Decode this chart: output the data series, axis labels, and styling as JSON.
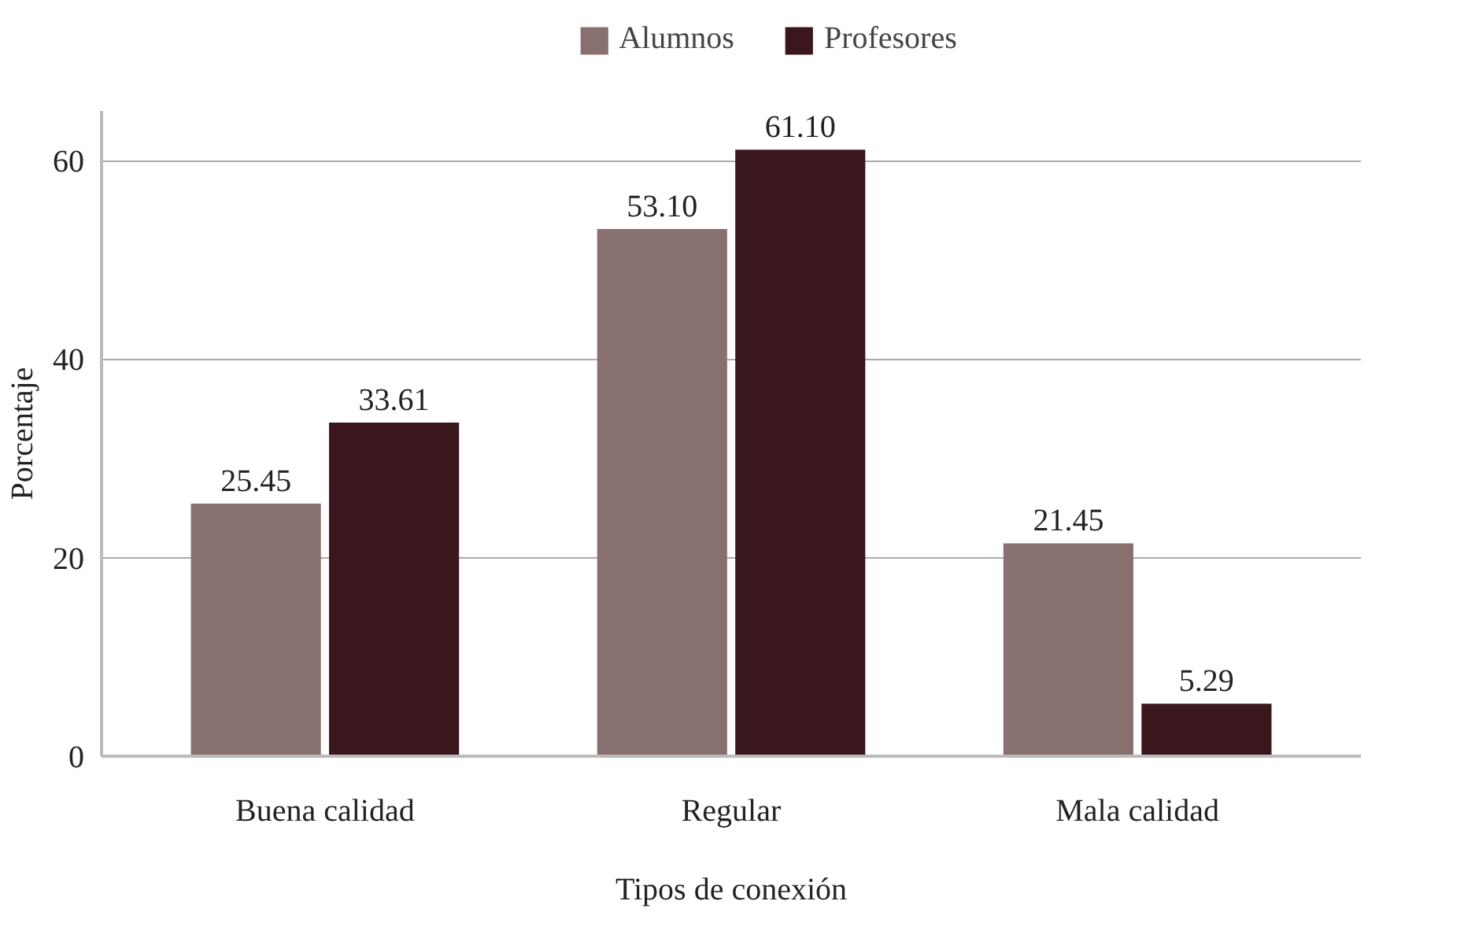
{
  "chart_data": {
    "type": "bar",
    "xlabel": "Tipos de conexión",
    "ylabel": "Porcentaje",
    "categories": [
      "Buena calidad",
      "Regular",
      "Mala calidad"
    ],
    "series": [
      {
        "name": "Alumnos",
        "color": "#87706f",
        "values": [
          25.45,
          53.1,
          21.45
        ],
        "value_labels": [
          "25.45",
          "53.10",
          "21.45"
        ]
      },
      {
        "name": "Profesores",
        "color": "#3a171d",
        "values": [
          33.61,
          61.1,
          5.29
        ],
        "value_labels": [
          "33.61",
          "61.10",
          "5.29"
        ]
      }
    ],
    "ylim": [
      0,
      65
    ],
    "yticks": [
      0,
      20,
      40,
      60
    ],
    "grid": "y",
    "legend": "top"
  }
}
